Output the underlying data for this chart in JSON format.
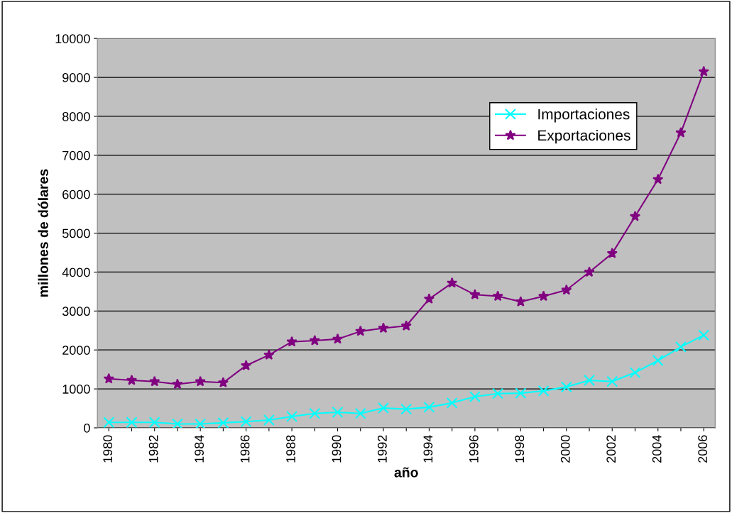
{
  "chart_data": {
    "type": "line",
    "xlabel": "año",
    "ylabel": "millones de dólares",
    "categories": [
      "1980",
      null,
      "1982",
      null,
      "1984",
      null,
      "1986",
      null,
      "1988",
      null,
      "1990",
      null,
      "1992",
      null,
      "1994",
      null,
      "1996",
      null,
      "1998",
      null,
      "2000",
      null,
      "2002",
      null,
      "2004",
      null,
      "2006"
    ],
    "series": [
      {
        "name": "Importaciones",
        "color": "#00ffff",
        "marker": "cross",
        "values": [
          140,
          140,
          140,
          100,
          100,
          130,
          160,
          200,
          290,
          370,
          400,
          370,
          510,
          480,
          530,
          640,
          800,
          880,
          890,
          950,
          1050,
          1220,
          1190,
          1420,
          1730,
          2080,
          2380
        ]
      },
      {
        "name": "Exportaciones",
        "color": "#800080",
        "marker": "star",
        "values": [
          1260,
          1220,
          1190,
          1120,
          1190,
          1160,
          1600,
          1870,
          2210,
          2240,
          2280,
          2480,
          2560,
          2620,
          3310,
          3720,
          3420,
          3380,
          3240,
          3380,
          3540,
          4000,
          4480,
          5430,
          6380,
          7580,
          9150
        ]
      }
    ],
    "ylim": [
      0,
      10000
    ],
    "yticks": [
      0,
      1000,
      2000,
      3000,
      4000,
      5000,
      6000,
      7000,
      8000,
      9000,
      10000
    ],
    "grid": "y",
    "legend": "right",
    "line_style": "solid"
  }
}
